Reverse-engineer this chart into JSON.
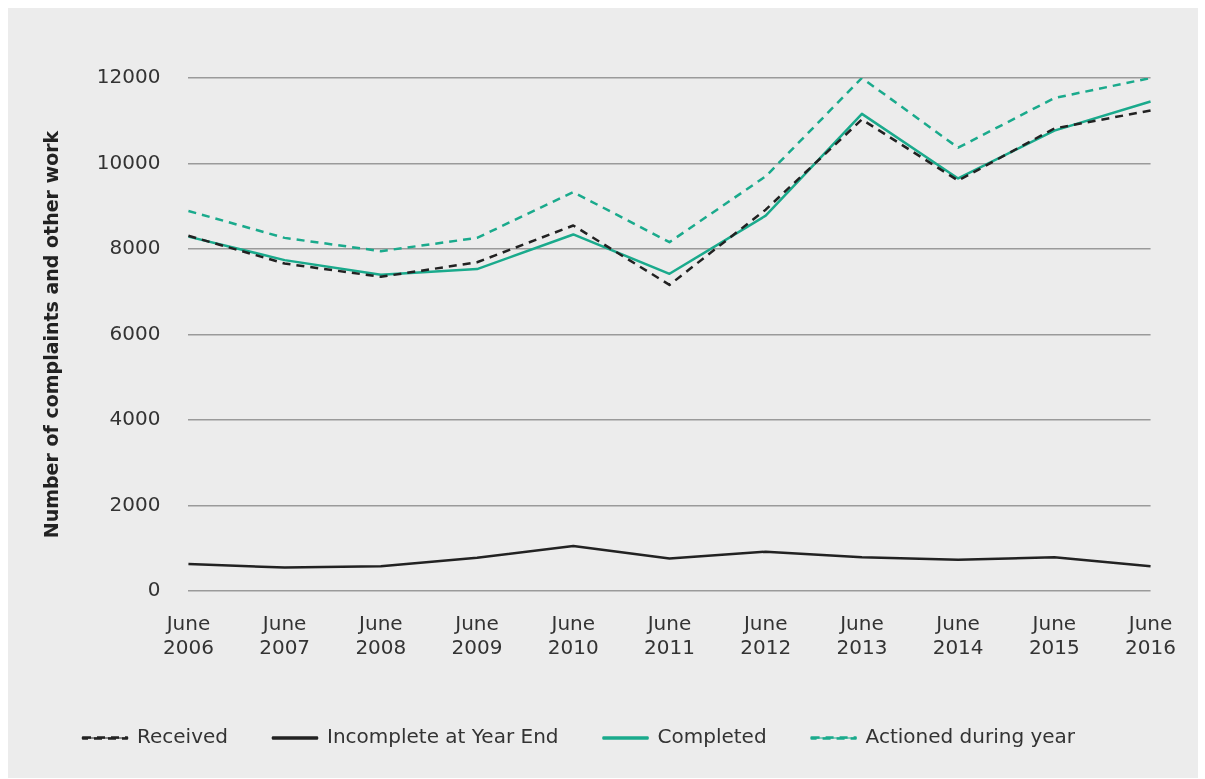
{
  "chart_data": {
    "type": "line",
    "ylabel": "Number of complaints and other work",
    "categories": [
      "June 2006",
      "June 2007",
      "June 2008",
      "June 2009",
      "June 2010",
      "June 2011",
      "June 2012",
      "June 2013",
      "June 2014",
      "June 2015",
      "June 2016"
    ],
    "series": [
      {
        "name": "Received",
        "color": "#222222",
        "line_style": "dashed",
        "values": [
          8310,
          7660,
          7350,
          7690,
          8550,
          7160,
          8920,
          11030,
          9600,
          10820,
          11240
        ]
      },
      {
        "name": "Incomplete at Year End",
        "color": "#222222",
        "line_style": "solid",
        "values": [
          630,
          550,
          580,
          780,
          1050,
          760,
          920,
          790,
          730,
          790,
          580
        ]
      },
      {
        "name": "Completed",
        "color": "#1aaa8c",
        "line_style": "solid",
        "values": [
          8290,
          7740,
          7400,
          7530,
          8340,
          7420,
          8780,
          11160,
          9650,
          10770,
          11450
        ]
      },
      {
        "name": "Actioned during year",
        "color": "#1aaa8c",
        "line_style": "dashed",
        "values": [
          8890,
          8260,
          7950,
          8260,
          9330,
          8160,
          9700,
          12000,
          10370,
          11530,
          12000
        ]
      }
    ],
    "ylim": [
      0,
      12000
    ],
    "yticks": [
      0,
      2000,
      4000,
      6000,
      8000,
      10000,
      12000
    ],
    "grid": "y",
    "legend": "bottom",
    "marker": "none"
  }
}
